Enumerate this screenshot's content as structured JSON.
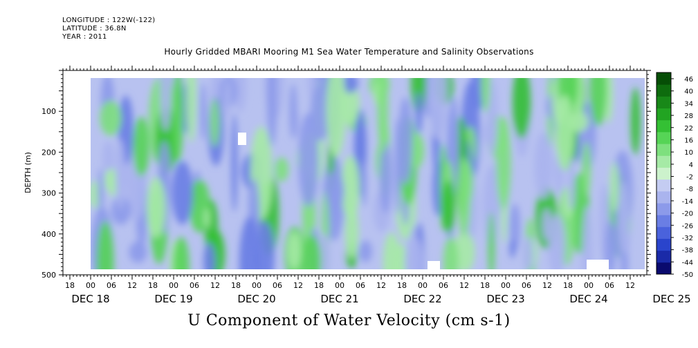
{
  "header": {
    "longitude": "LONGITUDE : 122W(-122)",
    "latitude": "LATITUDE : 36.8N",
    "year": "YEAR : 2011"
  },
  "chart_data": {
    "type": "heatmap",
    "title": "Hourly Gridded MBARI Mooring M1 Sea Water Temperature and Salinity Observations",
    "xlabel": "U Component of Water Velocity (cm s-1)",
    "ylabel": "DEPTH (m)",
    "x_range": [
      "DEC 17 16:00",
      "DEC 25 16:00"
    ],
    "ylim": [
      500,
      0
    ],
    "y_ticks": [
      100,
      200,
      300,
      400,
      500
    ],
    "hour_ticks": [
      "18",
      "00",
      "06",
      "12",
      "18",
      "00",
      "06",
      "12",
      "18",
      "00",
      "06",
      "12",
      "18",
      "00",
      "06",
      "12",
      "18",
      "00",
      "06",
      "12",
      "18",
      "00",
      "06",
      "12",
      "18",
      "00",
      "06",
      "12",
      "18",
      "00",
      "06",
      "12"
    ],
    "day_labels": [
      "DEC 18",
      "DEC 19",
      "DEC 20",
      "DEC 21",
      "DEC 22",
      "DEC 23",
      "DEC 24",
      "DEC 25"
    ],
    "colorbar": {
      "labels": [
        "46",
        "40",
        "34",
        "28",
        "22",
        "16",
        "10",
        "4",
        "-2",
        "-8",
        "-14",
        "-20",
        "-26",
        "-32",
        "-38",
        "-44",
        "-50"
      ],
      "range": [
        -50,
        52
      ],
      "colors_low_to_high": [
        "#0a0a6e",
        "#1a2aa8",
        "#2a44cc",
        "#4a62dc",
        "#6a7ee4",
        "#8c9aea",
        "#aab4ee",
        "#c4ccf2",
        "#ccf2cc",
        "#a6eaa6",
        "#7ee07e",
        "#56d456",
        "#34c034",
        "#22a422",
        "#188818",
        "#0e6c0e",
        "#064e06"
      ]
    },
    "data_coverage": {
      "first_data": "DEC 18 ~00:00",
      "depth_range_m": [
        20,
        485
      ]
    }
  }
}
